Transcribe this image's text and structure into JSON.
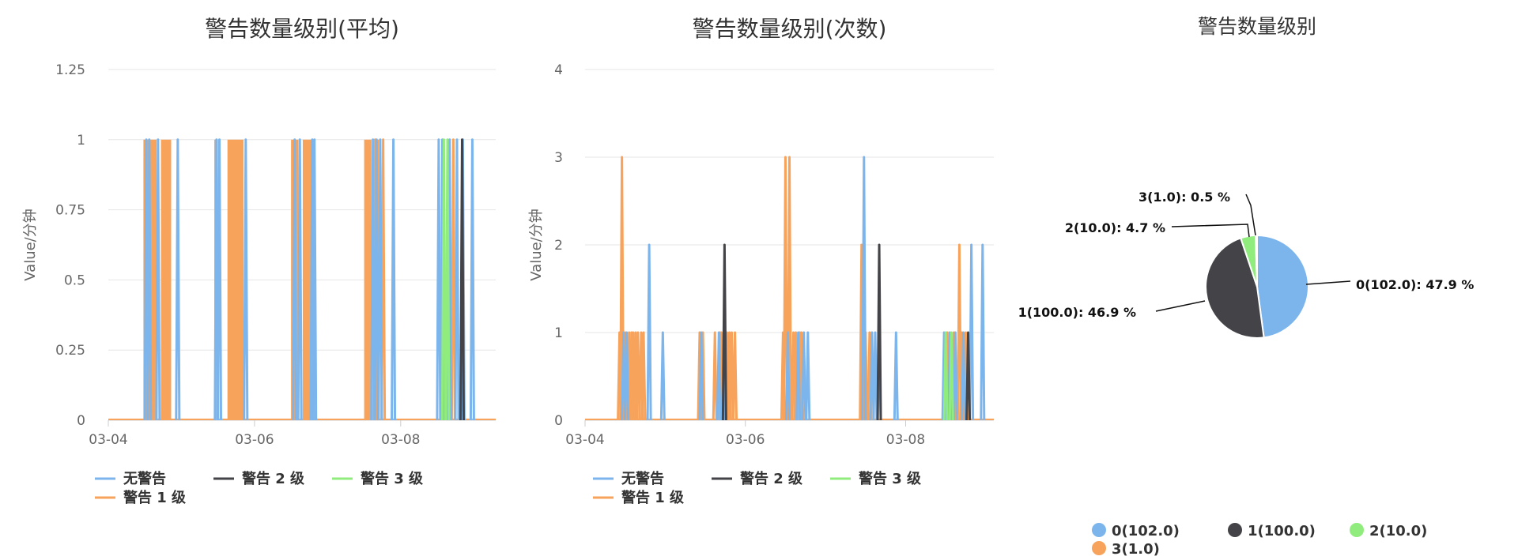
{
  "chart_data": [
    {
      "type": "line",
      "title": "警告数量级别(平均)",
      "ylabel": "Value/分钟",
      "xlabel": "",
      "ylim": [
        0,
        1.25
      ],
      "y_ticks": [
        0,
        0.25,
        0.5,
        0.75,
        1,
        1.25
      ],
      "y_tick_labels": [
        "0",
        "0.25",
        "0.5",
        "0.75",
        "1",
        "1.25"
      ],
      "x_ticks": [
        "03-04",
        "03-06",
        "03-08"
      ],
      "x_range_days": [
        0,
        5.3
      ],
      "grid": true,
      "legend_position": "bottom-left",
      "series": [
        {
          "name": "无警告",
          "color": "#7cb5ec",
          "spikes": [
            [
              0.52,
              1
            ],
            [
              0.56,
              1
            ],
            [
              0.68,
              1
            ],
            [
              0.95,
              1
            ],
            [
              1.48,
              1
            ],
            [
              1.52,
              1
            ],
            [
              1.88,
              1
            ],
            [
              2.55,
              1
            ],
            [
              2.62,
              1
            ],
            [
              2.79,
              1
            ],
            [
              2.82,
              1
            ],
            [
              3.62,
              1
            ],
            [
              3.67,
              1
            ],
            [
              3.72,
              1
            ],
            [
              3.9,
              1
            ],
            [
              4.52,
              1
            ],
            [
              4.57,
              1
            ],
            [
              4.67,
              1
            ],
            [
              4.77,
              1
            ],
            [
              4.85,
              1
            ],
            [
              4.98,
              1
            ]
          ]
        },
        {
          "name": "警告 2 级",
          "color": "#434348",
          "spikes": [
            [
              4.84,
              1
            ]
          ]
        },
        {
          "name": "警告 3 级",
          "color": "#90ed7d",
          "spikes": [
            [
              4.59,
              1
            ],
            [
              4.64,
              1
            ]
          ]
        },
        {
          "name": "警告 1 级",
          "color": "#f7a35c",
          "bands": [
            [
              0.48,
              0.66
            ],
            [
              0.72,
              0.86
            ],
            [
              1.45,
              1.5
            ],
            [
              1.63,
              1.85
            ],
            [
              2.5,
              2.6
            ],
            [
              2.66,
              2.78
            ],
            [
              3.5,
              3.6
            ],
            [
              3.68,
              3.7
            ]
          ],
          "spikes": [
            [
              3.65,
              1
            ],
            [
              3.76,
              1
            ],
            [
              4.72,
              1
            ]
          ]
        }
      ]
    },
    {
      "type": "line",
      "title": "警告数量级别(次数)",
      "ylabel": "Value/分钟",
      "xlabel": "",
      "ylim": [
        0,
        4
      ],
      "y_ticks": [
        0,
        1,
        2,
        3,
        4
      ],
      "y_tick_labels": [
        "0",
        "1",
        "2",
        "3",
        "4"
      ],
      "x_ticks": [
        "03-04",
        "03-06",
        "03-08"
      ],
      "x_range_days": [
        0,
        5.1
      ],
      "grid": true,
      "legend_position": "bottom-left",
      "series": [
        {
          "name": "无警告",
          "color": "#7cb5ec",
          "spikes": [
            [
              0.48,
              1
            ],
            [
              0.52,
              1
            ],
            [
              0.8,
              2
            ],
            [
              0.97,
              1
            ],
            [
              1.45,
              1
            ],
            [
              1.67,
              1
            ],
            [
              1.73,
              1
            ],
            [
              2.53,
              1
            ],
            [
              2.66,
              1
            ],
            [
              2.73,
              1
            ],
            [
              2.78,
              1
            ],
            [
              3.48,
              3
            ],
            [
              3.58,
              1
            ],
            [
              3.62,
              1
            ],
            [
              3.67,
              1
            ],
            [
              3.88,
              1
            ],
            [
              4.48,
              1
            ],
            [
              4.55,
              1
            ],
            [
              4.62,
              1
            ],
            [
              4.72,
              1
            ],
            [
              4.82,
              2
            ],
            [
              4.96,
              2
            ]
          ]
        },
        {
          "name": "警告 2 级",
          "color": "#434348",
          "spikes": [
            [
              1.74,
              2
            ],
            [
              3.67,
              2
            ],
            [
              4.78,
              1
            ]
          ]
        },
        {
          "name": "警告 3 级",
          "color": "#90ed7d",
          "spikes": [
            [
              4.5,
              1
            ],
            [
              4.57,
              1
            ]
          ]
        },
        {
          "name": "警告 1 级",
          "color": "#f7a35c",
          "spikes": [
            [
              0.43,
              1
            ],
            [
              0.46,
              3
            ],
            [
              0.5,
              1
            ],
            [
              0.55,
              1
            ],
            [
              0.58,
              1
            ],
            [
              0.6,
              1
            ],
            [
              0.63,
              1
            ],
            [
              0.66,
              1
            ],
            [
              0.7,
              1
            ],
            [
              0.73,
              1
            ],
            [
              1.43,
              1
            ],
            [
              1.47,
              1
            ],
            [
              1.62,
              1
            ],
            [
              1.68,
              1
            ],
            [
              1.7,
              1
            ],
            [
              1.77,
              1
            ],
            [
              1.8,
              1
            ],
            [
              1.83,
              1
            ],
            [
              1.87,
              1
            ],
            [
              2.47,
              1
            ],
            [
              2.5,
              3
            ],
            [
              2.55,
              3
            ],
            [
              2.6,
              1
            ],
            [
              2.63,
              1
            ],
            [
              2.68,
              1
            ],
            [
              2.7,
              1
            ],
            [
              3.45,
              2
            ],
            [
              3.47,
              1
            ],
            [
              3.5,
              1
            ],
            [
              3.55,
              1
            ],
            [
              4.52,
              1
            ],
            [
              4.6,
              1
            ],
            [
              4.67,
              2
            ],
            [
              4.7,
              1
            ],
            [
              4.75,
              1
            ]
          ]
        }
      ]
    },
    {
      "type": "pie",
      "title": "警告数量级别",
      "legend_position": "bottom",
      "slices": [
        {
          "label": "0(102.0)",
          "value": 102.0,
          "percent": 47.9,
          "color": "#7cb5ec",
          "data_label": "0(102.0): 47.9 %"
        },
        {
          "label": "1(100.0)",
          "value": 100.0,
          "percent": 46.9,
          "color": "#434348",
          "data_label": "1(100.0): 46.9 %"
        },
        {
          "label": "2(10.0)",
          "value": 10.0,
          "percent": 4.7,
          "color": "#90ed7d",
          "data_label": "2(10.0): 4.7 %"
        },
        {
          "label": "3(1.0)",
          "value": 1.0,
          "percent": 0.5,
          "color": "#f7a35c",
          "data_label": "3(1.0): 0.5 %"
        }
      ]
    }
  ]
}
